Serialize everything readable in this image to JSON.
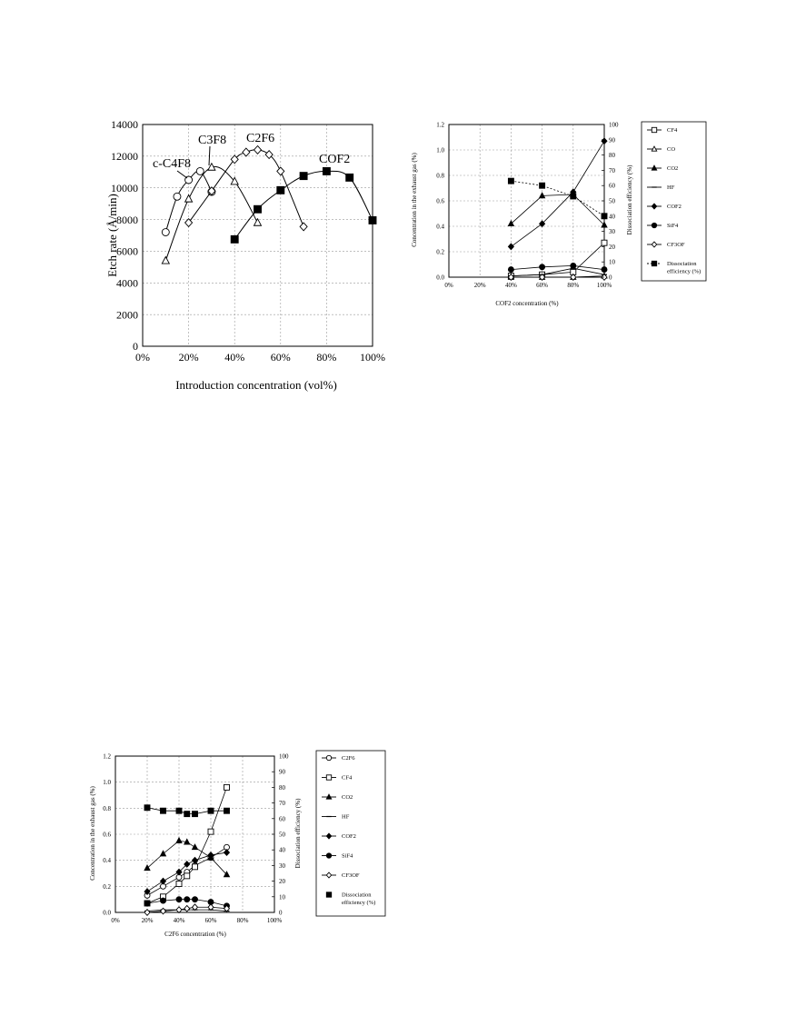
{
  "chart_data": [
    {
      "type": "line",
      "title": "",
      "xlabel": "Introduction concentration (vol%)",
      "ylabel": "Etch rate (Å/min)",
      "xlim": [
        0,
        100
      ],
      "ylim": [
        0,
        14000
      ],
      "xticks": [
        "0%",
        "20%",
        "40%",
        "60%",
        "80%",
        "100%"
      ],
      "yticks": [
        "0",
        "2000",
        "4000",
        "6000",
        "8000",
        "10000",
        "12000",
        "14000"
      ],
      "grid": true,
      "legend": "none",
      "series": [
        {
          "name": "c-C4F8",
          "marker": "circle-open",
          "x": [
            10,
            15,
            20,
            25,
            30
          ],
          "y": [
            7200,
            9450,
            10500,
            11050,
            9750
          ]
        },
        {
          "name": "C3F8",
          "marker": "triangle-open",
          "x": [
            10,
            20,
            30,
            40,
            50
          ],
          "y": [
            5400,
            9300,
            11300,
            10400,
            7800
          ]
        },
        {
          "name": "C2F6",
          "marker": "diamond-open",
          "x": [
            20,
            30,
            40,
            45,
            50,
            55,
            60,
            70
          ],
          "y": [
            7800,
            9800,
            11800,
            12250,
            12400,
            12100,
            11050,
            7550
          ]
        },
        {
          "name": "COF2",
          "marker": "square-filled",
          "x": [
            40,
            50,
            60,
            70,
            80,
            90,
            100
          ],
          "y": [
            6750,
            8650,
            9850,
            10750,
            11050,
            10650,
            7950
          ]
        }
      ],
      "series_labels": [
        "c-C4F8",
        "C3F8",
        "C2F6",
        "COF2"
      ]
    },
    {
      "type": "line",
      "title": "",
      "xlabel": "COF2 concentration (%)",
      "ylabel": "Concentration in the exhaust gas (%)",
      "y2label": "Dissociation efficiency (%)",
      "xlim": [
        0,
        100
      ],
      "ylim": [
        0,
        1.2
      ],
      "y2lim": [
        0,
        100
      ],
      "xticks": [
        "0%",
        "20%",
        "40%",
        "60%",
        "80%",
        "100%"
      ],
      "yticks": [
        "0.0",
        "0.2",
        "0.4",
        "0.6",
        "0.8",
        "1.0",
        "1.2"
      ],
      "y2ticks": [
        "0",
        "10",
        "20",
        "30",
        "40",
        "50",
        "60",
        "70",
        "80",
        "90",
        "100"
      ],
      "grid": true,
      "legend": "right",
      "series": [
        {
          "name": "CF4",
          "marker": "square-open",
          "x": [
            40,
            60,
            80,
            100
          ],
          "y": [
            0.01,
            0.02,
            0.04,
            0.27
          ]
        },
        {
          "name": "CO",
          "marker": "triangle-open",
          "x": [
            40,
            60,
            80,
            100
          ],
          "y": [
            0.0,
            0.0,
            0.0,
            0.01
          ]
        },
        {
          "name": "CO2",
          "marker": "triangle-filled",
          "x": [
            40,
            60,
            80,
            100
          ],
          "y": [
            0.42,
            0.64,
            0.65,
            0.41
          ]
        },
        {
          "name": "HF",
          "marker": "dash",
          "x": [
            40,
            60,
            80,
            100
          ],
          "y": [
            0.01,
            0.02,
            0.07,
            0.02
          ]
        },
        {
          "name": "COF2",
          "marker": "diamond-filled",
          "x": [
            40,
            60,
            80,
            100
          ],
          "y": [
            0.24,
            0.42,
            0.67,
            1.07
          ]
        },
        {
          "name": "SiF4",
          "marker": "circle-filled",
          "x": [
            40,
            60,
            80,
            100
          ],
          "y": [
            0.06,
            0.08,
            0.09,
            0.06
          ]
        },
        {
          "name": "CF3OF",
          "marker": "diamond-open",
          "x": [
            40,
            60,
            80,
            100
          ],
          "y": [
            0.0,
            0.0,
            0.0,
            0.0
          ]
        },
        {
          "name": "Dissociation efficiency (%)",
          "axis": "y2",
          "marker": "square-filled",
          "dashed": true,
          "x": [
            40,
            60,
            80,
            100
          ],
          "y": [
            63,
            60,
            53,
            40
          ]
        }
      ]
    },
    {
      "type": "line",
      "title": "",
      "xlabel": "C2F6 concentration (%)",
      "ylabel": "Concentration in the exhaust gas (%)",
      "y2label": "Dissociation efficiency (%)",
      "xlim": [
        0,
        100
      ],
      "ylim": [
        0,
        1.2
      ],
      "y2lim": [
        0,
        100
      ],
      "xticks": [
        "0%",
        "20%",
        "40%",
        "60%",
        "80%",
        "100%"
      ],
      "yticks": [
        "0.0",
        "0.2",
        "0.4",
        "0.6",
        "0.8",
        "1.0",
        "1.2"
      ],
      "y2ticks": [
        "0",
        "10",
        "20",
        "30",
        "40",
        "50",
        "60",
        "70",
        "80",
        "90",
        "100"
      ],
      "grid": true,
      "legend": "right",
      "series": [
        {
          "name": "C2F6",
          "marker": "circle-open",
          "x": [
            20,
            30,
            40,
            45,
            50,
            60,
            70
          ],
          "y": [
            0.13,
            0.2,
            0.27,
            0.31,
            0.36,
            0.42,
            0.5
          ]
        },
        {
          "name": "CF4",
          "marker": "square-open",
          "x": [
            20,
            30,
            40,
            45,
            50,
            60,
            70
          ],
          "y": [
            0.07,
            0.12,
            0.22,
            0.28,
            0.35,
            0.62,
            0.96
          ]
        },
        {
          "name": "CO2",
          "marker": "triangle-filled",
          "x": [
            20,
            30,
            40,
            45,
            50,
            60,
            70
          ],
          "y": [
            0.34,
            0.45,
            0.55,
            0.54,
            0.5,
            0.42,
            0.29
          ]
        },
        {
          "name": "HF",
          "marker": "dash",
          "x": [
            20,
            30,
            40,
            45,
            50,
            60,
            70
          ],
          "y": [
            0.01,
            0.02,
            0.02,
            0.02,
            0.02,
            0.02,
            0.01
          ]
        },
        {
          "name": "COF2",
          "marker": "diamond-filled",
          "x": [
            20,
            30,
            40,
            45,
            50,
            60,
            70
          ],
          "y": [
            0.16,
            0.24,
            0.31,
            0.37,
            0.4,
            0.44,
            0.46
          ]
        },
        {
          "name": "SiF4",
          "marker": "circle-filled",
          "x": [
            20,
            30,
            40,
            45,
            50,
            60,
            70
          ],
          "y": [
            0.07,
            0.09,
            0.1,
            0.1,
            0.1,
            0.08,
            0.05
          ]
        },
        {
          "name": "CF3OF",
          "marker": "diamond-open",
          "x": [
            20,
            30,
            40,
            45,
            50,
            60,
            70
          ],
          "y": [
            0.0,
            0.01,
            0.02,
            0.03,
            0.04,
            0.04,
            0.03
          ]
        },
        {
          "name": "Dissociation efficiency (%)",
          "axis": "y2",
          "marker": "square-filled",
          "dashed": false,
          "x": [
            20,
            30,
            40,
            45,
            50,
            60,
            70
          ],
          "y": [
            67,
            65,
            65,
            63,
            63,
            65,
            65
          ]
        }
      ]
    }
  ],
  "legend_labels": {
    "chart2": [
      "CF4",
      "CO",
      "CO2",
      "HF",
      "COF2",
      "SiF4",
      "CF3OF",
      "Dissociation",
      "efficiency (%)"
    ],
    "chart3": [
      "C2F6",
      "CF4",
      "CO2",
      "HF",
      "COF2",
      "SiF4",
      "CF3OF",
      "Dissociation",
      "efficiency (%)"
    ]
  }
}
